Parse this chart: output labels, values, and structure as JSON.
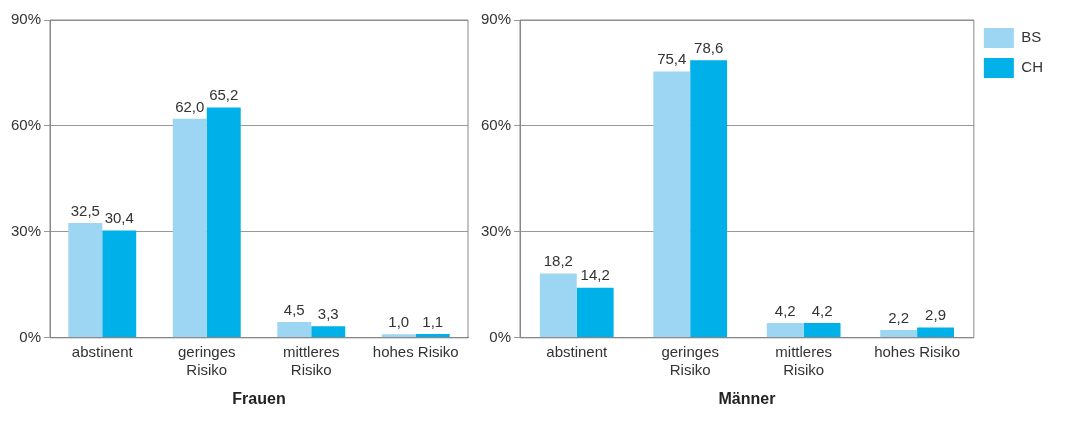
{
  "chart_data": [
    {
      "type": "bar",
      "xlabel": "Frauen",
      "categories": [
        "abstinent",
        "geringes\nRisiko",
        "mittleres\nRisiko",
        "hohes Risiko"
      ],
      "series": [
        {
          "color": "#9dd6f2",
          "values": [
            32.5,
            62.0,
            4.5,
            1.0
          ],
          "value_labels": [
            "32,5",
            "62,0",
            "4,5",
            "1,0"
          ]
        },
        {
          "color": "#00b0e8",
          "values": [
            30.4,
            65.2,
            3.3,
            1.1
          ],
          "value_labels": [
            "30,4",
            "65,2",
            "3,3",
            "1,1"
          ]
        }
      ],
      "ylim": [
        0,
        90
      ],
      "yticks": [
        {
          "value": 0,
          "label": "0%"
        },
        {
          "value": 30,
          "label": "30%"
        },
        {
          "value": 60,
          "label": "60%"
        },
        {
          "value": 90,
          "label": "90%"
        }
      ],
      "grid": "y",
      "legend": false
    },
    {
      "type": "bar",
      "xlabel": "Männer",
      "categories": [
        "abstinent",
        "geringes\nRisiko",
        "mittleres\nRisiko",
        "hohes Risiko"
      ],
      "series": [
        {
          "name": "BS",
          "color": "#9dd6f2",
          "values": [
            18.2,
            75.4,
            4.2,
            2.2
          ],
          "value_labels": [
            "18,2",
            "75,4",
            "4,2",
            "2,2"
          ]
        },
        {
          "name": "CH",
          "color": "#00b0e8",
          "values": [
            14.2,
            78.6,
            4.2,
            2.9
          ],
          "value_labels": [
            "14,2",
            "78,6",
            "4,2",
            "2,9"
          ]
        }
      ],
      "ylim": [
        0,
        90
      ],
      "yticks": [
        {
          "value": 0,
          "label": "0%"
        },
        {
          "value": 30,
          "label": "30%"
        },
        {
          "value": 60,
          "label": "60%"
        },
        {
          "value": 90,
          "label": "90%"
        }
      ],
      "grid": "y",
      "legend": "right"
    }
  ]
}
